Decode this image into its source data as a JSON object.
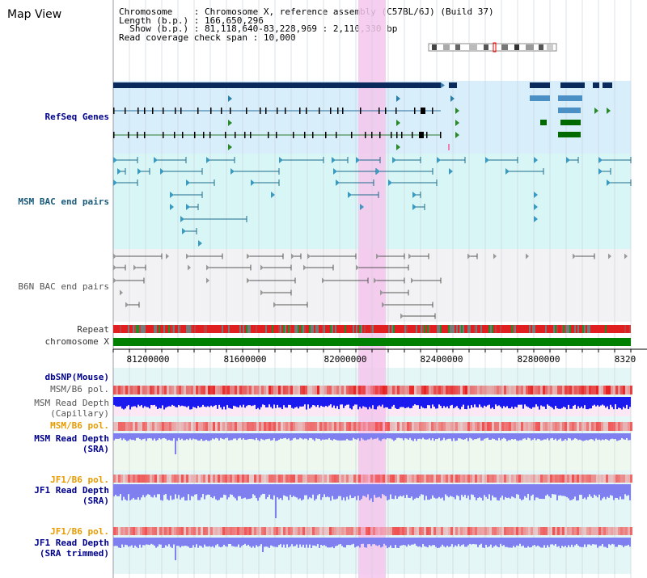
{
  "app": {
    "title": "Map View"
  },
  "info": {
    "chromosome_key": "Chromosome",
    "chromosome_value": "Chromosome X, reference assembly (C57BL/6J) (Build 37)",
    "length_key": "Length (b.p.)",
    "length_value": "166,650,296",
    "show_key": "Show (b.p.)",
    "show_value": "81,118,640-83,228,969 : 2,110,330 bp",
    "coverage_key": "Read coverage check span",
    "coverage_value": "10,000"
  },
  "tracks": {
    "refseq": "RefSeq Genes",
    "msm_bac": "MSM BAC end pairs",
    "b6n_bac": "B6N BAC end pairs",
    "repeat": "Repeat",
    "chromosome": "chromosome X",
    "dbsnp": "dbSNP(Mouse)",
    "msm_b6_pol_1": "MSM/B6 pol.",
    "msm_read_depth_cap_1": "MSM Read Depth",
    "msm_read_depth_cap_2": "(Capillary)",
    "msm_b6_pol_2": "MSM/B6 pol.",
    "msm_read_depth_sra_1": "MSM Read Depth",
    "msm_read_depth_sra_2": "(SRA)",
    "jf1_b6_pol_1": "JF1/B6 pol.",
    "jf1_read_depth_sra_1": "JF1 Read Depth",
    "jf1_read_depth_sra_2": "(SRA)",
    "jf1_b6_pol_2": "JF1/B6 pol.",
    "jf1_read_depth_trim_1": "JF1 Read Depth",
    "jf1_read_depth_trim_2": "(SRA trimmed)"
  },
  "axis": {
    "ticks": [
      "81200000",
      "81600000",
      "82000000",
      "82400000",
      "82800000",
      "8320"
    ]
  },
  "colors": {
    "refseq_bg": "#d8eefa",
    "bac_bg": "#d9f6f6",
    "b6n_bg": "#f2f2f4",
    "highlight": "#f4c6ec",
    "gene_dark": "#0a2a5c",
    "gene_blue": "#4a90c4",
    "gene_green": "#006a00",
    "repeat_red": "#e02020",
    "chromosome_green": "#008000",
    "depth_blue": "#1a1aee",
    "depth_light": "#7f7ff0",
    "pol_red": "#f07070"
  }
}
